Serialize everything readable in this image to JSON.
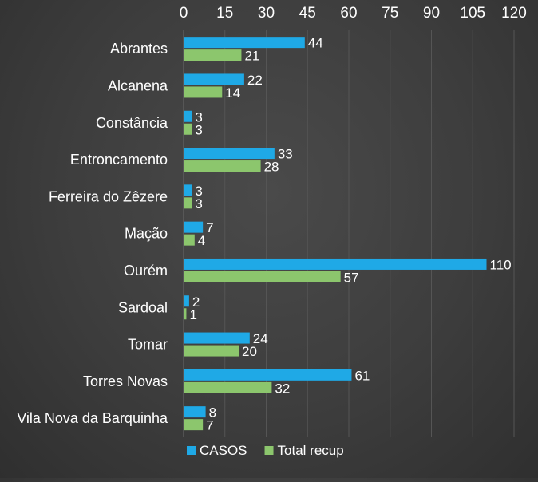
{
  "chart_data": {
    "type": "bar",
    "orientation": "horizontal",
    "title": "",
    "xlabel": "",
    "ylabel": "",
    "categories": [
      "Abrantes",
      "Alcanena",
      "Constância",
      "Entroncamento",
      "Ferreira do Zêzere",
      "Mação",
      "Ourém",
      "Sardoal",
      "Tomar",
      "Torres Novas",
      "Vila Nova da Barquinha"
    ],
    "series": [
      {
        "name": "CASOS",
        "values": [
          44,
          22,
          3,
          33,
          3,
          7,
          110,
          2,
          24,
          61,
          8
        ],
        "color": "#1fa9e6"
      },
      {
        "name": "Total recup",
        "values": [
          21,
          14,
          3,
          28,
          3,
          4,
          57,
          1,
          20,
          32,
          7
        ],
        "color": "#8cc66d"
      }
    ],
    "xlim": [
      0,
      120
    ],
    "xticks": [
      "0",
      "15",
      "30",
      "45",
      "60",
      "75",
      "90",
      "105",
      "120"
    ],
    "x_axis_position": "top",
    "grid": true,
    "data_labels": true,
    "legend": {
      "position": "bottom"
    },
    "colors": {
      "background": "#3d3d3d",
      "text": "#ffffff",
      "grid": "#555555"
    }
  }
}
